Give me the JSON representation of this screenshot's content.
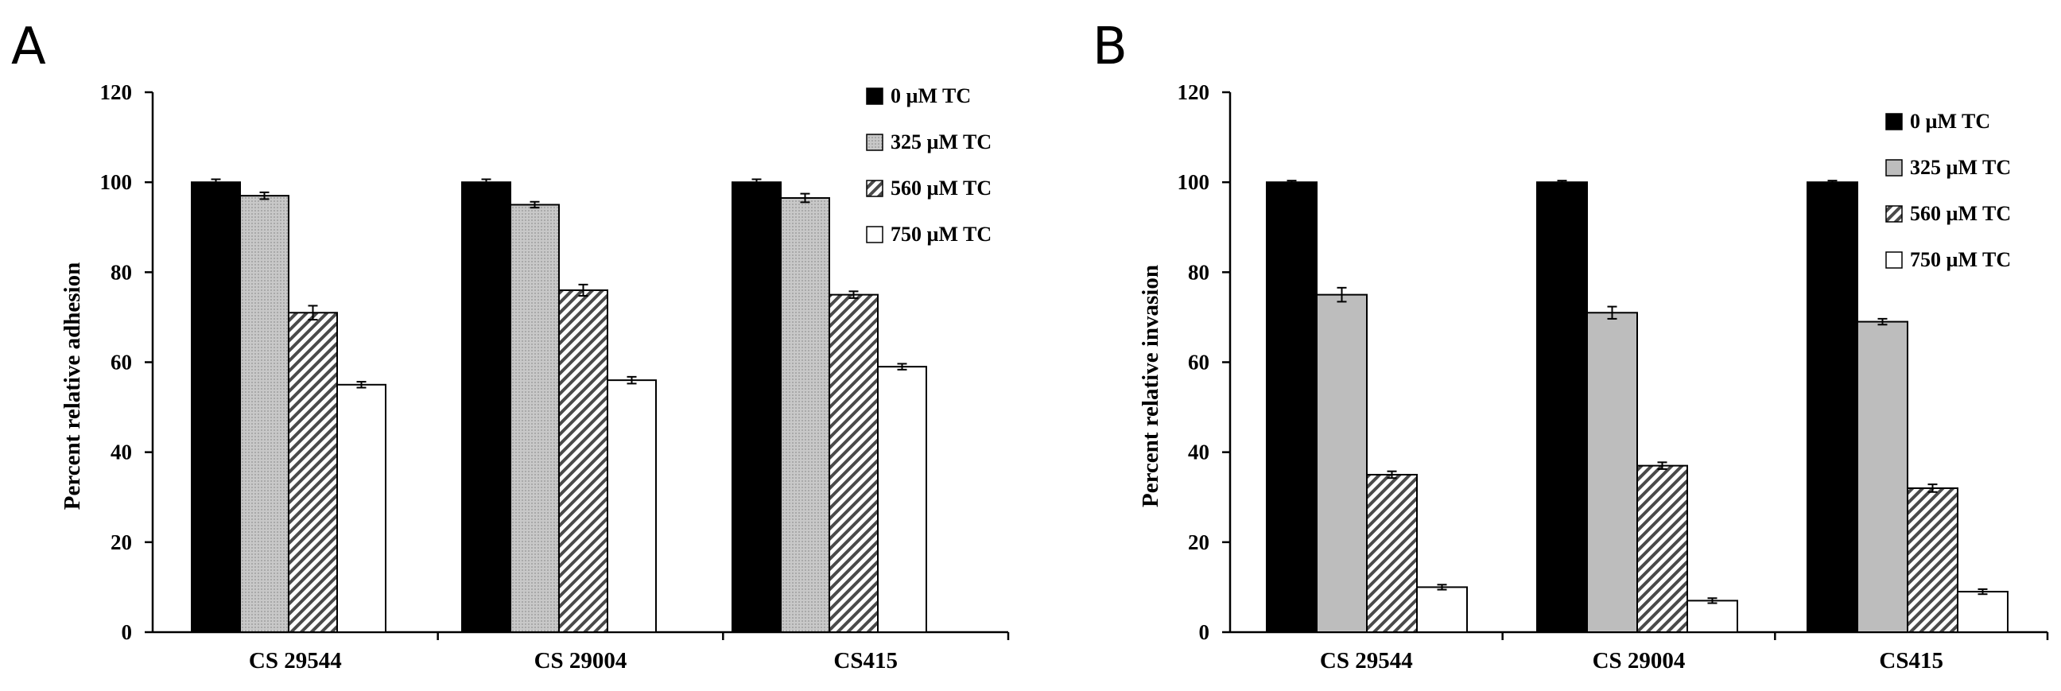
{
  "figure": {
    "panels": [
      "A",
      "B"
    ],
    "legend_items": [
      "0 µM TC",
      "325 µM TC",
      "560 µM TC",
      "750 µM TC"
    ]
  },
  "chart_data": [
    {
      "type": "bar",
      "panel": "A",
      "title": "",
      "xlabel": "",
      "ylabel": "Percent relative adhesion",
      "ylim": [
        0,
        120
      ],
      "yticks": [
        0,
        20,
        40,
        60,
        80,
        100,
        120
      ],
      "categories": [
        "CS 29544",
        "CS 29004",
        "CS415"
      ],
      "legend_position": "top-right",
      "series": [
        {
          "name": "0 µM TC",
          "values": [
            100,
            100,
            100
          ],
          "errors": [
            0.3,
            0.3,
            0.3
          ],
          "fill": "solid-black"
        },
        {
          "name": "325 µM TC",
          "values": [
            97,
            95,
            96.5
          ],
          "errors": [
            0.4,
            0.3,
            0.6
          ],
          "fill": "light-gray-dotted"
        },
        {
          "name": "560 µM TC",
          "values": [
            71,
            76,
            75
          ],
          "errors": [
            1.2,
            0.9,
            0.4
          ],
          "fill": "diagonal-hatch"
        },
        {
          "name": "750 µM TC",
          "values": [
            55,
            56,
            59
          ],
          "errors": [
            0.3,
            0.4,
            0.3
          ],
          "fill": "white"
        }
      ]
    },
    {
      "type": "bar",
      "panel": "B",
      "title": "",
      "xlabel": "",
      "ylabel": "Percent relative invasion",
      "ylim": [
        0,
        120
      ],
      "yticks": [
        0,
        20,
        40,
        60,
        80,
        100,
        120
      ],
      "categories": [
        "CS 29544",
        "CS 29004",
        "CS415"
      ],
      "legend_position": "top-right",
      "series": [
        {
          "name": "0 µM TC",
          "values": [
            100,
            100,
            100
          ],
          "errors": [
            0,
            0,
            0
          ],
          "fill": "solid-black"
        },
        {
          "name": "325 µM TC",
          "values": [
            75,
            71,
            69
          ],
          "errors": [
            1.2,
            1.0,
            0.3
          ],
          "fill": "light-gray"
        },
        {
          "name": "560 µM TC",
          "values": [
            35,
            37,
            32
          ],
          "errors": [
            0.4,
            0.4,
            0.5
          ],
          "fill": "diagonal-hatch"
        },
        {
          "name": "750 µM TC",
          "values": [
            10,
            7,
            9
          ],
          "errors": [
            0.2,
            0.2,
            0.2
          ],
          "fill": "white"
        }
      ]
    }
  ]
}
